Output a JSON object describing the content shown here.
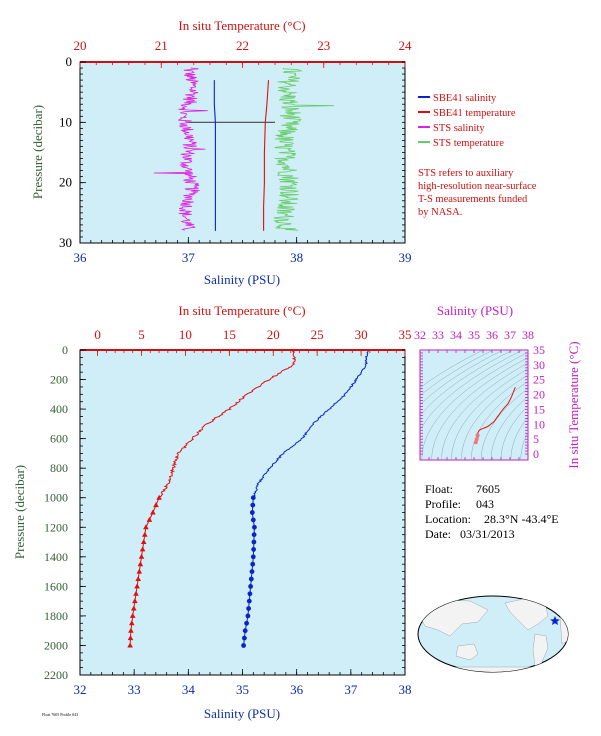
{
  "colors": {
    "plot_bg": "#cfeef8",
    "salinity": "#0b24c8",
    "temperature": "#e01010",
    "sts_salinity": "#e020e0",
    "sts_temperature": "#66cc66",
    "axis_blue": "#0b2ea8",
    "axis_red": "#d01010",
    "axis_magenta": "#c020c0",
    "axis_green": "#355e35"
  },
  "legend": {
    "items": [
      {
        "label": "SBE41 salinity",
        "color": "#0b24c8"
      },
      {
        "label": "SBE41 temperature",
        "color": "#e01010"
      },
      {
        "label": "STS salinity",
        "color": "#e020e0"
      },
      {
        "label": "STS temperature",
        "color": "#66cc66"
      }
    ],
    "note": [
      "STS refers to auxiliary",
      "high-resolution near-surface",
      "T-S measurements funded",
      "by NASA."
    ]
  },
  "info": {
    "float_label": "Float:",
    "float_value": "7605",
    "profile_label": "Profile:",
    "profile_value": "043",
    "location_label": "Location:",
    "location_value": "28.3°N  -43.4°E",
    "date_label": "Date:",
    "date_value": "03/31/2013"
  },
  "footer_text": "Float 7605 Profile 043",
  "chart_data": [
    {
      "id": "near-surface",
      "type": "line",
      "xlabel_bottom": "Salinity (PSU)",
      "xlabel_top": "In situ Temperature (°C)",
      "ylabel": "Pressure (decibar)",
      "xlim_bottom": [
        36,
        39
      ],
      "xlim_top": [
        20,
        24
      ],
      "ylim": [
        30,
        0
      ],
      "xticks_bottom": [
        "36",
        "37",
        "38",
        "39"
      ],
      "xticks_top": [
        "20",
        "21",
        "22",
        "23",
        "24"
      ],
      "yticks": [
        "0",
        "10",
        "20",
        "30"
      ],
      "series": [
        {
          "name": "SBE41 salinity",
          "axis": "bottom",
          "x": [
            37.24,
            37.24,
            37.25,
            37.25,
            37.25,
            37.25,
            37.25
          ],
          "y": [
            3,
            7,
            10,
            15,
            20,
            24,
            28
          ]
        },
        {
          "name": "SBE41 temperature",
          "axis": "top",
          "x": [
            22.32,
            22.3,
            22.28,
            22.27,
            22.27,
            22.26,
            22.26
          ],
          "y": [
            3,
            7,
            10,
            15,
            20,
            24,
            28
          ]
        },
        {
          "name": "STS salinity",
          "axis": "bottom",
          "x": [
            37.0,
            37.05,
            36.95,
            37.02,
            36.98,
            37.04,
            36.97,
            37.0
          ],
          "y": [
            1,
            5,
            9,
            13,
            17,
            21,
            25,
            28
          ]
        },
        {
          "name": "STS temperature",
          "axis": "top",
          "x": [
            22.6,
            22.55,
            22.6,
            22.5,
            22.55,
            22.6,
            22.5,
            22.55
          ],
          "y": [
            1,
            5,
            9,
            13,
            17,
            21,
            25,
            28
          ]
        }
      ]
    },
    {
      "id": "full-profile",
      "type": "line",
      "xlabel_bottom": "Salinity (PSU)",
      "xlabel_top": "In situ Temperature (°C)",
      "ylabel": "Pressure (decibar)",
      "xlim_bottom": [
        32,
        38
      ],
      "xlim_top": [
        -2,
        35
      ],
      "ylim": [
        2200,
        0
      ],
      "xticks_bottom": [
        "32",
        "33",
        "34",
        "35",
        "36",
        "37",
        "38"
      ],
      "xticks_top": [
        "0",
        "5",
        "10",
        "15",
        "20",
        "25",
        "30",
        "35"
      ],
      "yticks": [
        "0",
        "200",
        "400",
        "600",
        "800",
        "1000",
        "1200",
        "1400",
        "1600",
        "1800",
        "2000",
        "2200"
      ],
      "series": [
        {
          "name": "SBE41 salinity",
          "axis": "bottom",
          "x": [
            37.3,
            37.28,
            37.1,
            36.9,
            36.6,
            36.3,
            36.1,
            35.75,
            35.5,
            35.3,
            35.2,
            35.18,
            35.22,
            35.2,
            35.15,
            35.1,
            35.05,
            35.02
          ],
          "y": [
            5,
            100,
            200,
            300,
            400,
            500,
            600,
            700,
            800,
            900,
            1000,
            1100,
            1200,
            1400,
            1600,
            1800,
            1900,
            2000
          ]
        },
        {
          "name": "SBE41 temperature",
          "axis": "top",
          "x": [
            22.4,
            22.3,
            19.5,
            17.0,
            15.0,
            12.5,
            10.8,
            9.2,
            8.6,
            8.1,
            7.0,
            6.3,
            5.5,
            5.0,
            4.5,
            4.0,
            3.8,
            3.7
          ],
          "y": [
            5,
            100,
            200,
            300,
            400,
            500,
            600,
            700,
            800,
            900,
            1000,
            1100,
            1200,
            1400,
            1600,
            1800,
            1900,
            2000
          ]
        }
      ]
    },
    {
      "id": "ts-diagram",
      "type": "scatter",
      "xlabel_top": "Salinity (PSU)",
      "ylabel_right": "In situ Temperature (°C)",
      "xlim": [
        32,
        38
      ],
      "ylim": [
        -2,
        35
      ],
      "xticks": [
        "32",
        "33",
        "34",
        "35",
        "36",
        "37",
        "38"
      ],
      "yticks": [
        "0",
        "5",
        "10",
        "15",
        "20",
        "25",
        "30",
        "35"
      ],
      "series": [
        {
          "name": "SBE41",
          "x": [
            35.1,
            35.15,
            35.2,
            35.3,
            35.5,
            35.75,
            36.1,
            36.6,
            37.1,
            37.3
          ],
          "y": [
            4.0,
            5.0,
            6.3,
            8.1,
            8.6,
            9.2,
            10.8,
            15.0,
            19.5,
            22.4
          ]
        }
      ]
    }
  ]
}
